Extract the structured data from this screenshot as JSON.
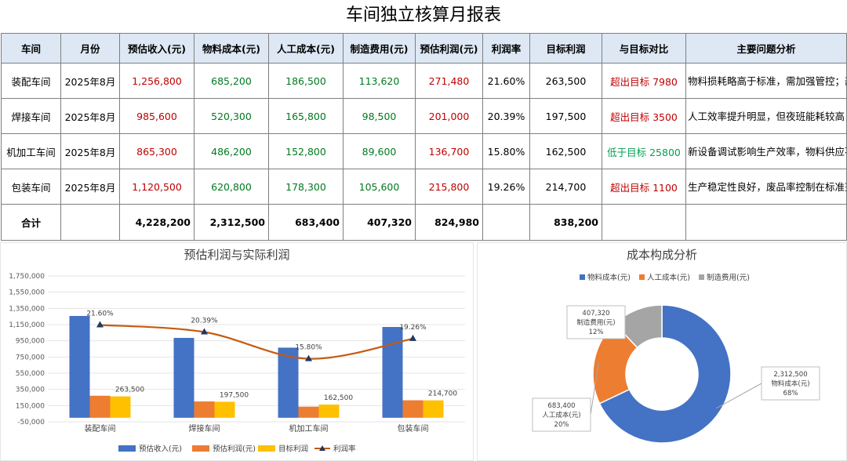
{
  "title": "车间独立核算月报表",
  "table": {
    "headers": [
      "车间",
      "月份",
      "预估收入(元)",
      "物料成本(元)",
      "人工成本(元)",
      "制造费用(元)",
      "预估利润(元)",
      "利润率",
      "目标利润",
      "与目标对比",
      "主要问题分析"
    ],
    "rows": [
      {
        "workshop": "装配车间",
        "month": "2025年8月",
        "revenue": "1,256,800",
        "material": "685,200",
        "labor": "186,500",
        "overhead": "113,620",
        "profit": "271,480",
        "margin": "21.60%",
        "target": "263,500",
        "compare": "超出目标 7980",
        "analysis": "物料损耗略高于标准，需加强管控；部分设备效率有待提升。"
      },
      {
        "workshop": "焊接车间",
        "month": "2025年8月",
        "revenue": "985,600",
        "material": "520,300",
        "labor": "165,800",
        "overhead": "98,500",
        "profit": "201,000",
        "margin": "20.39%",
        "target": "197,500",
        "compare": "超出目标 3500",
        "analysis": "人工效率提升明显，但夜班能耗较高，需优化生产排班。"
      },
      {
        "workshop": "机加工车间",
        "month": "2025年8月",
        "revenue": "865,300",
        "material": "486,200",
        "labor": "152,800",
        "overhead": "89,600",
        "profit": "136,700",
        "margin": "15.80%",
        "target": "162,500",
        "compare": "低于目标 25800",
        "analysis": "新设备调试影响生产效率，物料供应不稳定导致停机时间增加。"
      },
      {
        "workshop": "包装车间",
        "month": "2025年8月",
        "revenue": "1,120,500",
        "material": "620,800",
        "labor": "178,300",
        "overhead": "105,600",
        "profit": "215,800",
        "margin": "19.26%",
        "target": "214,700",
        "compare": "超出目标 1100",
        "analysis": "生产稳定性良好，废品率控制在标准范围内，建议推广其物料管理经验。"
      }
    ],
    "total": {
      "label": "合计",
      "revenue": "4,228,200",
      "material": "2,312,500",
      "labor": "683,400",
      "overhead": "407,320",
      "profit": "824,980",
      "target": "838,200"
    }
  },
  "chart_data": [
    {
      "type": "bar",
      "title": "预估利润与实际利润",
      "categories": [
        "装配车间",
        "焊接车间",
        "机加工车间",
        "包装车间"
      ],
      "series": [
        {
          "name": "预估收入(元)",
          "type": "bar",
          "values": [
            1256800,
            985600,
            865300,
            1120500
          ],
          "color": "#4472c4"
        },
        {
          "name": "预估利润(元)",
          "type": "bar",
          "values": [
            271480,
            201000,
            136700,
            215800
          ],
          "color": "#ed7d31"
        },
        {
          "name": "目标利润",
          "type": "bar",
          "values": [
            263500,
            197500,
            162500,
            214700
          ],
          "color": "#ffc000",
          "data_labels": [
            "263,500",
            "197,500",
            "162,500",
            "214,700"
          ]
        },
        {
          "name": "利润率",
          "type": "line",
          "values": [
            21.6,
            20.39,
            15.8,
            19.26
          ],
          "color": "#c55a11",
          "data_labels": [
            "21.60%",
            "20.39%",
            "15.80%",
            "19.26%"
          ]
        }
      ],
      "y_ticks": [
        "1,750,000",
        "1,550,000",
        "1,350,000",
        "1,150,000",
        "950,000",
        "750,000",
        "550,000",
        "350,000",
        "150,000",
        "-50,000"
      ],
      "ylim": [
        -50000,
        1750000
      ],
      "legend": "bottom"
    },
    {
      "type": "pie",
      "title": "成本构成分析",
      "slices": [
        {
          "name": "物料成本(元)",
          "value": 2312500,
          "value_label": "2,312,500",
          "percent": "68%",
          "color": "#4472c4"
        },
        {
          "name": "人工成本(元)",
          "value": 683400,
          "value_label": "683,400",
          "percent": "20%",
          "color": "#ed7d31"
        },
        {
          "name": "制造费用(元)",
          "value": 407320,
          "value_label": "407,320",
          "percent": "12%",
          "color": "#a5a5a5"
        }
      ],
      "legend": "top"
    }
  ]
}
